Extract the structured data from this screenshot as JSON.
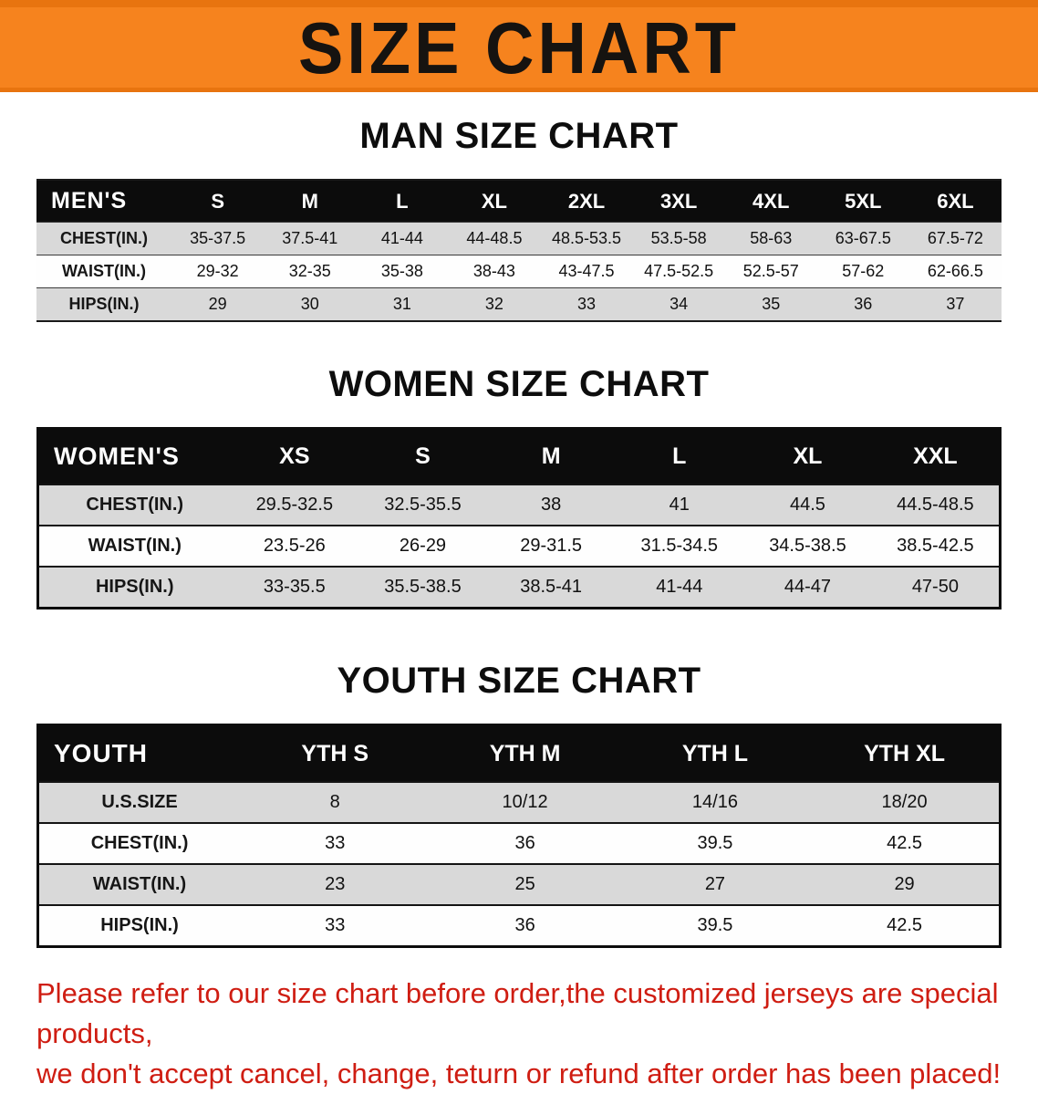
{
  "banner": {
    "title": "SIZE CHART"
  },
  "colors": {
    "banner_orange": "#f6831e",
    "table_header_black": "#0c0c0c",
    "row_gray": "#d9d9d9",
    "disclaimer_red": "#cf1d12"
  },
  "sections": [
    {
      "title": "MAN SIZE CHART",
      "table": {
        "header": [
          "MEN'S",
          "S",
          "M",
          "L",
          "XL",
          "2XL",
          "3XL",
          "4XL",
          "5XL",
          "6XL"
        ],
        "rows": [
          [
            "CHEST(IN.)",
            "35-37.5",
            "37.5-41",
            "41-44",
            "44-48.5",
            "48.5-53.5",
            "53.5-58",
            "58-63",
            "63-67.5",
            "67.5-72"
          ],
          [
            "WAIST(IN.)",
            "29-32",
            "32-35",
            "35-38",
            "38-43",
            "43-47.5",
            "47.5-52.5",
            "52.5-57",
            "57-62",
            "62-66.5"
          ],
          [
            "HIPS(IN.)",
            "29",
            "30",
            "31",
            "32",
            "33",
            "34",
            "35",
            "36",
            "37"
          ]
        ]
      }
    },
    {
      "title": "WOMEN SIZE CHART",
      "table": {
        "header": [
          "WOMEN'S",
          "XS",
          "S",
          "M",
          "L",
          "XL",
          "XXL"
        ],
        "rows": [
          [
            "CHEST(IN.)",
            "29.5-32.5",
            "32.5-35.5",
            "38",
            "41",
            "44.5",
            "44.5-48.5"
          ],
          [
            "WAIST(IN.)",
            "23.5-26",
            "26-29",
            "29-31.5",
            "31.5-34.5",
            "34.5-38.5",
            "38.5-42.5"
          ],
          [
            "HIPS(IN.)",
            "33-35.5",
            "35.5-38.5",
            "38.5-41",
            "41-44",
            "44-47",
            "47-50"
          ]
        ]
      }
    },
    {
      "title": "YOUTH SIZE CHART",
      "table": {
        "header": [
          "YOUTH",
          "YTH S",
          "YTH M",
          "YTH L",
          "YTH XL"
        ],
        "rows": [
          [
            "U.S.SIZE",
            "8",
            "10/12",
            "14/16",
            "18/20"
          ],
          [
            "CHEST(IN.)",
            "33",
            "36",
            "39.5",
            "42.5"
          ],
          [
            "WAIST(IN.)",
            "23",
            "25",
            "27",
            "29"
          ],
          [
            "HIPS(IN.)",
            "33",
            "36",
            "39.5",
            "42.5"
          ]
        ]
      }
    }
  ],
  "footer": {
    "line1": "Please refer to our size chart before order,the customized jerseys are special products,",
    "line2": "we don't accept cancel, change, teturn or refund after order has been placed!"
  }
}
